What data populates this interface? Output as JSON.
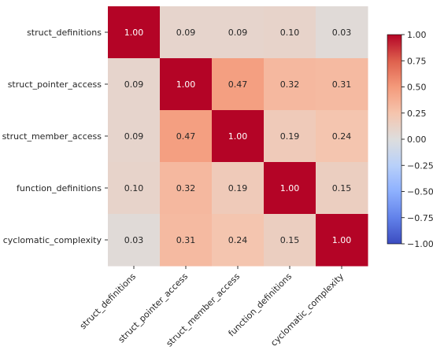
{
  "chart_data": {
    "type": "heatmap",
    "title": "",
    "xlabel": "",
    "ylabel": "",
    "rows": [
      "struct_definitions",
      "struct_pointer_access",
      "struct_member_access",
      "function_definitions",
      "cyclomatic_complexity"
    ],
    "columns": [
      "struct_definitions",
      "struct_pointer_access",
      "struct_member_access",
      "function_definitions",
      "cyclomatic_complexity"
    ],
    "values": [
      [
        1.0,
        0.09,
        0.09,
        0.1,
        0.03
      ],
      [
        0.09,
        1.0,
        0.47,
        0.32,
        0.31
      ],
      [
        0.09,
        0.47,
        1.0,
        0.19,
        0.24
      ],
      [
        0.1,
        0.32,
        0.19,
        1.0,
        0.15
      ],
      [
        0.03,
        0.31,
        0.24,
        0.15,
        1.0
      ]
    ],
    "value_labels": [
      [
        "1.00",
        "0.09",
        "0.09",
        "0.10",
        "0.03"
      ],
      [
        "0.09",
        "1.00",
        "0.47",
        "0.32",
        "0.31"
      ],
      [
        "0.09",
        "0.47",
        "1.00",
        "0.19",
        "0.24"
      ],
      [
        "0.10",
        "0.32",
        "0.19",
        "1.00",
        "0.15"
      ],
      [
        "0.03",
        "0.31",
        "0.24",
        "0.15",
        "1.00"
      ]
    ],
    "colormap": "coolwarm",
    "vmin": -1.0,
    "vmax": 1.0,
    "colorbar": {
      "ticks": [
        1.0,
        0.75,
        0.5,
        0.25,
        0.0,
        -0.25,
        -0.5,
        -0.75,
        -1.0
      ],
      "tick_labels": [
        "1.00",
        "0.75",
        "0.50",
        "0.25",
        "0.00",
        "−0.25",
        "−0.50",
        "−0.75",
        "−1.00"
      ],
      "placement": "right"
    },
    "grid": false
  }
}
